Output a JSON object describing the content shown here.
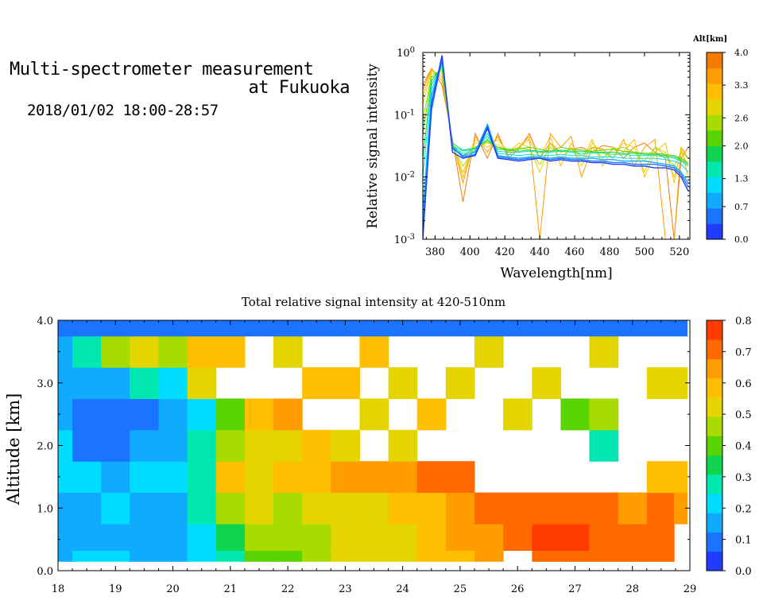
{
  "header": {
    "title_line1": "Multi-spectrometer measurement",
    "title_line2": "at Fukuoka",
    "date_range": "2018/01/02 18:00-28:57"
  },
  "chart_data": [
    {
      "type": "line",
      "title": "",
      "xlabel": "Wavelength[nm]",
      "ylabel": "Relative signal intensity",
      "xlim": [
        373,
        526
      ],
      "ylim": [
        0.001,
        1
      ],
      "yscale": "log",
      "x_ticks": [
        380,
        400,
        420,
        440,
        460,
        480,
        500,
        520
      ],
      "y_tick_labels": [
        "10^-3",
        "10^-2",
        "10^-1",
        "10^0"
      ],
      "colorbar": {
        "label": "Alt[km]",
        "range": [
          0.0,
          4.0
        ],
        "tick_labels": [
          "0.0",
          "0.7",
          "1.3",
          "2.0",
          "2.6",
          "3.3",
          "4.0"
        ],
        "colors": [
          "#1f3cff",
          "#1a74ff",
          "#10aaff",
          "#00dcff",
          "#00e8b0",
          "#10d450",
          "#5ad400",
          "#a8dc00",
          "#e4d400",
          "#ffbe00",
          "#ff9c00",
          "#f57a00"
        ]
      },
      "x": [
        373,
        378,
        384,
        390,
        396,
        403,
        410,
        416,
        422,
        428,
        434,
        440,
        446,
        452,
        458,
        464,
        470,
        476,
        482,
        488,
        494,
        500,
        506,
        512,
        517,
        521,
        525
      ],
      "series": [
        {
          "color": "#1f3cff",
          "values": [
            0.001,
            0.15,
            0.9,
            0.025,
            0.02,
            0.022,
            0.06,
            0.02,
            0.019,
            0.018,
            0.019,
            0.02,
            0.018,
            0.019,
            0.018,
            0.018,
            0.017,
            0.017,
            0.016,
            0.016,
            0.015,
            0.015,
            0.014,
            0.014,
            0.013,
            0.01,
            0.006
          ]
        },
        {
          "color": "#1a74ff",
          "values": [
            0.0012,
            0.12,
            0.8,
            0.03,
            0.021,
            0.023,
            0.065,
            0.021,
            0.02,
            0.019,
            0.02,
            0.02,
            0.019,
            0.02,
            0.019,
            0.019,
            0.018,
            0.018,
            0.017,
            0.017,
            0.016,
            0.016,
            0.016,
            0.015,
            0.014,
            0.011,
            0.007
          ]
        },
        {
          "color": "#10aaff",
          "values": [
            0.002,
            0.2,
            0.75,
            0.028,
            0.022,
            0.025,
            0.07,
            0.022,
            0.021,
            0.02,
            0.021,
            0.021,
            0.02,
            0.021,
            0.02,
            0.02,
            0.02,
            0.019,
            0.019,
            0.018,
            0.018,
            0.018,
            0.017,
            0.016,
            0.015,
            0.012,
            0.008
          ]
        },
        {
          "color": "#00dcff",
          "values": [
            0.003,
            0.25,
            0.7,
            0.03,
            0.024,
            0.026,
            0.05,
            0.024,
            0.023,
            0.022,
            0.023,
            0.022,
            0.022,
            0.023,
            0.022,
            0.022,
            0.021,
            0.021,
            0.021,
            0.02,
            0.02,
            0.02,
            0.02,
            0.019,
            0.018,
            0.016,
            0.012
          ]
        },
        {
          "color": "#00e8b0",
          "values": [
            0.01,
            0.3,
            0.65,
            0.032,
            0.026,
            0.028,
            0.045,
            0.026,
            0.025,
            0.025,
            0.026,
            0.025,
            0.025,
            0.026,
            0.025,
            0.024,
            0.024,
            0.024,
            0.023,
            0.023,
            0.022,
            0.022,
            0.022,
            0.021,
            0.02,
            0.018,
            0.015
          ]
        },
        {
          "color": "#10d450",
          "values": [
            0.02,
            0.35,
            0.6,
            0.035,
            0.027,
            0.029,
            0.04,
            0.028,
            0.027,
            0.026,
            0.027,
            0.026,
            0.026,
            0.027,
            0.026,
            0.026,
            0.025,
            0.025,
            0.025,
            0.024,
            0.024,
            0.023,
            0.023,
            0.022,
            0.021,
            0.019,
            0.016
          ]
        },
        {
          "color": "#5ad400",
          "values": [
            0.05,
            0.4,
            0.55,
            0.033,
            0.022,
            0.03,
            0.038,
            0.03,
            0.028,
            0.028,
            0.03,
            0.028,
            0.026,
            0.03,
            0.028,
            0.027,
            0.026,
            0.027,
            0.028,
            0.026,
            0.025,
            0.024,
            0.024,
            0.023,
            0.022,
            0.02,
            0.017
          ]
        },
        {
          "color": "#a8dc00",
          "values": [
            0.08,
            0.45,
            0.5,
            0.03,
            0.015,
            0.028,
            0.036,
            0.03,
            0.026,
            0.03,
            0.027,
            0.016,
            0.03,
            0.025,
            0.028,
            0.022,
            0.03,
            0.02,
            0.028,
            0.03,
            0.025,
            0.018,
            0.03,
            0.022,
            0.015,
            0.025,
            0.02
          ]
        },
        {
          "color": "#e4d400",
          "values": [
            0.15,
            0.5,
            0.45,
            0.032,
            0.012,
            0.035,
            0.035,
            0.033,
            0.025,
            0.035,
            0.03,
            0.012,
            0.035,
            0.02,
            0.03,
            0.015,
            0.035,
            0.025,
            0.02,
            0.035,
            0.03,
            0.012,
            0.03,
            0.025,
            0.01,
            0.025,
            0.015
          ]
        },
        {
          "color": "#ffbe00",
          "values": [
            0.2,
            0.52,
            0.4,
            0.035,
            0.01,
            0.04,
            0.03,
            0.04,
            0.025,
            0.03,
            0.04,
            0.02,
            0.045,
            0.015,
            0.035,
            0.018,
            0.04,
            0.015,
            0.03,
            0.025,
            0.04,
            0.01,
            0.025,
            0.035,
            0.008,
            0.03,
            0.01
          ]
        },
        {
          "color": "#ff9c00",
          "values": [
            0.25,
            0.55,
            0.35,
            0.038,
            0.008,
            0.045,
            0.025,
            0.045,
            0.022,
            0.03,
            0.045,
            0.001,
            0.05,
            0.03,
            0.045,
            0.01,
            0.03,
            0.028,
            0.02,
            0.04,
            0.015,
            0.03,
            0.04,
            0.001,
            0.001,
            0.03,
            0.02
          ]
        },
        {
          "color": "#f57a00",
          "values": [
            0.3,
            0.55,
            0.3,
            0.04,
            0.004,
            0.05,
            0.02,
            0.05,
            0.02,
            0.028,
            0.05,
            0.02,
            0.035,
            0.025,
            0.028,
            0.03,
            0.025,
            0.032,
            0.03,
            0.02,
            0.03,
            0.035,
            0.025,
            0.02,
            0.001,
            0.02,
            0.03
          ]
        }
      ]
    },
    {
      "type": "heatmap",
      "title": "Total relative signal intensity at 420-510nm",
      "xlabel": "",
      "ylabel": "Altitude [km]",
      "xlim": [
        18,
        29
      ],
      "ylim": [
        0.0,
        4.0
      ],
      "x_ticks": [
        18,
        19,
        20,
        21,
        22,
        23,
        24,
        25,
        26,
        27,
        28,
        29
      ],
      "y_tick_labels": [
        "0.0",
        "1.0",
        "2.0",
        "3.0",
        "4.0"
      ],
      "colorbar": {
        "range": [
          0.0,
          0.8
        ],
        "tick_labels": [
          "0.0",
          "0.1",
          "0.2",
          "0.3",
          "0.4",
          "0.5",
          "0.6",
          "0.7",
          "0.8"
        ],
        "colors": [
          "#1f3cff",
          "#1a74ff",
          "#10aaff",
          "#00dcff",
          "#00e8b0",
          "#10d450",
          "#5ad400",
          "#a8dc00",
          "#e4d400",
          "#ffbe00",
          "#ff9c00",
          "#ff6a00",
          "#ff3c00"
        ]
      },
      "data_altitude_range": [
        0.15,
        4.0
      ],
      "data_time_range": [
        18.0,
        28.95
      ],
      "time_grid": [
        18.0,
        18.5,
        19.0,
        19.5,
        20.0,
        20.5,
        21.0,
        21.5,
        22.0,
        22.5,
        23.0,
        23.5,
        24.0,
        24.5,
        25.0,
        25.5,
        26.0,
        26.5,
        27.0,
        27.5,
        28.0,
        28.5,
        28.95
      ],
      "altitude_grid": [
        0.15,
        0.5,
        1.0,
        1.5,
        2.0,
        2.5,
        3.0,
        3.5,
        4.0
      ],
      "values": [
        [
          0.18,
          0.17,
          0.17,
          0.19,
          0.2,
          0.16,
          0.15,
          0.15,
          0.1
        ],
        [
          0.19,
          0.17,
          0.18,
          0.2,
          0.12,
          0.12,
          0.14,
          0.25,
          0.08
        ],
        [
          0.2,
          0.18,
          0.19,
          0.18,
          0.12,
          0.1,
          0.15,
          0.45,
          0.1
        ],
        [
          0.18,
          0.16,
          0.17,
          0.2,
          0.14,
          0.12,
          0.28,
          0.5,
          0.08
        ],
        [
          0.17,
          0.16,
          0.18,
          0.22,
          0.16,
          0.15,
          0.2,
          0.45,
          0.1
        ],
        [
          0.22,
          0.2,
          0.26,
          0.3,
          0.25,
          0.2,
          0.55,
          0.6,
          0.08
        ],
        [
          0.3,
          0.35,
          0.45,
          0.6,
          0.45,
          0.4,
          null,
          0.6,
          0.12
        ],
        [
          0.4,
          0.45,
          0.5,
          0.55,
          0.55,
          0.6,
          null,
          null,
          0.1
        ],
        [
          0.4,
          0.45,
          0.48,
          0.6,
          0.5,
          0.65,
          null,
          0.55,
          0.1
        ],
        [
          0.45,
          0.48,
          0.5,
          0.6,
          0.6,
          null,
          0.6,
          null,
          0.12
        ],
        [
          0.5,
          0.5,
          0.55,
          0.62,
          0.55,
          null,
          0.6,
          null,
          0.1
        ],
        [
          0.55,
          0.52,
          0.55,
          0.62,
          null,
          0.55,
          null,
          0.6,
          0.1
        ],
        [
          0.55,
          0.55,
          0.58,
          0.65,
          0.55,
          null,
          0.5,
          null,
          0.12
        ],
        [
          0.58,
          0.58,
          0.6,
          0.68,
          null,
          0.6,
          null,
          null,
          0.1
        ],
        [
          0.6,
          0.62,
          0.65,
          0.72,
          null,
          null,
          0.55,
          null,
          0.12
        ],
        [
          0.62,
          0.65,
          0.68,
          null,
          null,
          null,
          null,
          0.5,
          0.1
        ],
        [
          null,
          0.72,
          0.7,
          null,
          null,
          0.55,
          null,
          null,
          0.1
        ],
        [
          0.72,
          0.74,
          0.7,
          null,
          null,
          null,
          0.5,
          null,
          0.12
        ],
        [
          0.72,
          0.74,
          0.7,
          null,
          null,
          0.4,
          null,
          null,
          0.1
        ],
        [
          0.7,
          0.72,
          0.68,
          null,
          0.3,
          0.45,
          null,
          0.5,
          0.1
        ],
        [
          0.72,
          0.72,
          0.65,
          null,
          null,
          null,
          null,
          null,
          0.12
        ],
        [
          0.72,
          0.7,
          0.68,
          0.6,
          null,
          null,
          0.55,
          null,
          0.1
        ],
        [
          null,
          null,
          0.65,
          0.6,
          null,
          null,
          0.5,
          null,
          0.12
        ]
      ]
    }
  ]
}
